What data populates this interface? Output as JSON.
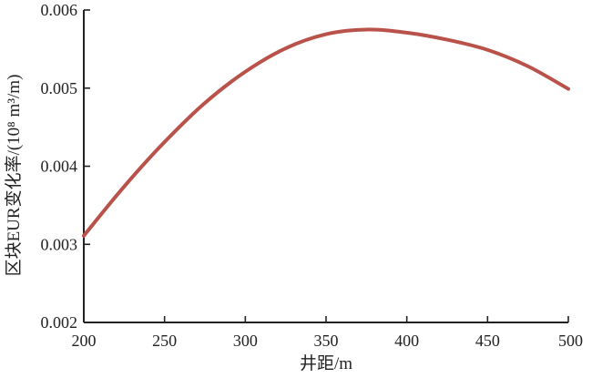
{
  "chart_data": {
    "type": "line",
    "title": "",
    "xlabel": "井距/m",
    "ylabel": "区块EUR变化率/(10⁸ m³/m)",
    "xlim": [
      200,
      500
    ],
    "ylim": [
      0.002,
      0.006
    ],
    "x_ticks": [
      "200",
      "250",
      "300",
      "350",
      "400",
      "450",
      "500"
    ],
    "y_ticks": [
      "0.002",
      "0.003",
      "0.004",
      "0.005",
      "0.006"
    ],
    "grid": false,
    "legend": "none",
    "series": [
      {
        "color": "#b9524a",
        "x": [
          200,
          225,
          250,
          275,
          300,
          325,
          350,
          375,
          400,
          425,
          450,
          475,
          500
        ],
        "y": [
          0.00311,
          0.00374,
          0.00431,
          0.00481,
          0.00521,
          0.00551,
          0.00569,
          0.00575,
          0.00571,
          0.00562,
          0.00549,
          0.00528,
          0.00499
        ]
      }
    ]
  }
}
